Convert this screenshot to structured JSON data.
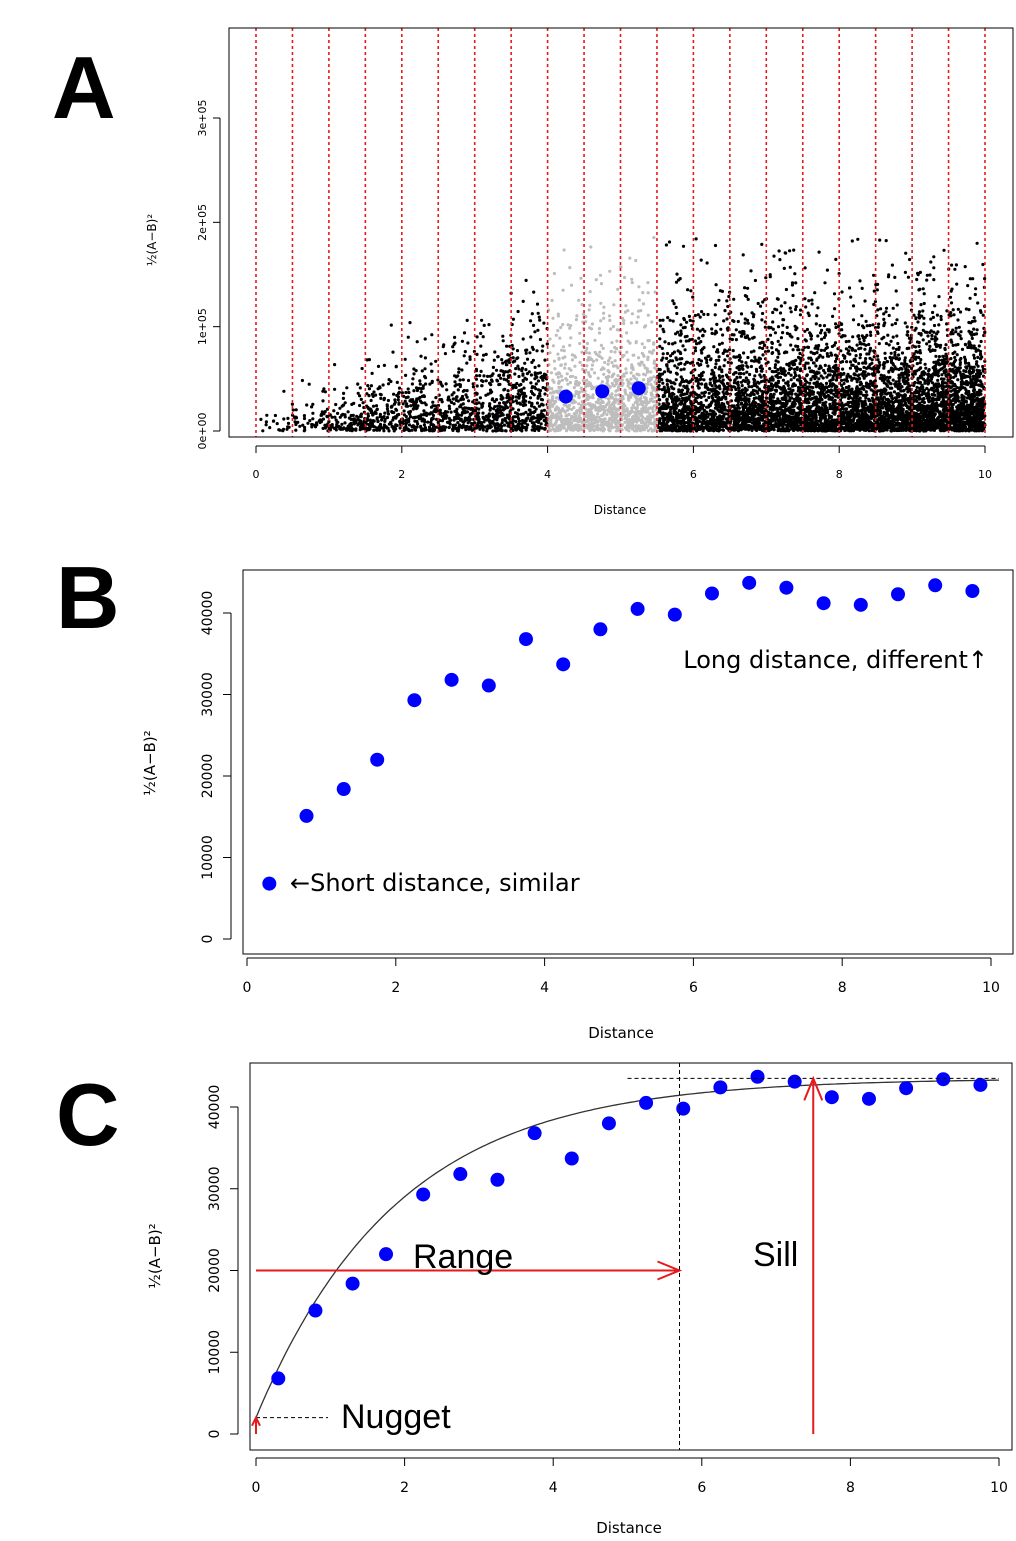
{
  "chart_data": [
    {
      "panel": "A",
      "type": "scatter",
      "xlabel": "Distance",
      "ylabel": "½(A−B)²",
      "xlim": [
        0,
        10
      ],
      "ylim": [
        0,
        380000
      ],
      "x_ticks": [
        "0",
        "2",
        "4",
        "6",
        "8",
        "10"
      ],
      "y_ticks": [
        "0e+00",
        "1e+05",
        "2e+05",
        "3e+05"
      ],
      "bin_edges": [
        0,
        0.5,
        1,
        1.5,
        2,
        2.5,
        3,
        3.5,
        4,
        4.5,
        5,
        5.5,
        6,
        6.5,
        7,
        7.5,
        8,
        8.5,
        9,
        9.5,
        10
      ],
      "bin_line_color": "#e41a1c",
      "highlight_x_range": [
        4,
        5.5
      ],
      "highlight_point_color": "#bdbdbd",
      "cloud_point_color": "#000000",
      "series": [
        {
          "x": [
            4.25,
            4.75,
            5.25
          ],
          "y": [
            33000,
            38000,
            41000
          ],
          "color": "#0000ff"
        }
      ]
    },
    {
      "panel": "B",
      "type": "scatter",
      "xlabel": "Distance",
      "ylabel": "½(A−B)²",
      "xlim": [
        0,
        10
      ],
      "ylim": [
        0,
        45000
      ],
      "x_ticks": [
        "0",
        "2",
        "4",
        "6",
        "8",
        "10"
      ],
      "y_ticks": [
        "0",
        "10000",
        "20000",
        "30000",
        "40000"
      ],
      "series": [
        {
          "x": [
            0.3,
            0.8,
            1.3,
            1.75,
            2.25,
            2.75,
            3.25,
            3.75,
            4.25,
            4.75,
            5.25,
            5.75,
            6.25,
            6.75,
            7.25,
            7.75,
            8.25,
            8.75,
            9.25,
            9.75
          ],
          "y": [
            6800,
            15100,
            18400,
            22000,
            29300,
            31800,
            31100,
            36800,
            33700,
            38000,
            40500,
            39800,
            42400,
            43700,
            43100,
            41200,
            41000,
            42300,
            43400,
            42700
          ],
          "color": "#0000ff"
        }
      ],
      "annotations": [
        "←Short distance, similar",
        "Long distance, different↑"
      ]
    },
    {
      "panel": "C",
      "type": "scatter",
      "xlabel": "Distance",
      "ylabel": "½(A−B)²",
      "xlim": [
        0,
        10
      ],
      "ylim": [
        0,
        45000
      ],
      "x_ticks": [
        "0",
        "2",
        "4",
        "6",
        "8",
        "10"
      ],
      "y_ticks": [
        "0",
        "10000",
        "20000",
        "30000",
        "40000"
      ],
      "series": [
        {
          "x": [
            0.3,
            0.8,
            1.3,
            1.75,
            2.25,
            2.75,
            3.25,
            3.75,
            4.25,
            4.75,
            5.25,
            5.75,
            6.25,
            6.75,
            7.25,
            7.75,
            8.25,
            8.75,
            9.25,
            9.75
          ],
          "y": [
            6800,
            15100,
            18400,
            22000,
            29300,
            31800,
            31100,
            36800,
            33700,
            38000,
            40500,
            39800,
            42400,
            43700,
            43100,
            41200,
            41000,
            42300,
            43400,
            42700
          ],
          "color": "#0000ff"
        }
      ],
      "model": {
        "nugget": 2000,
        "sill": 43500,
        "range": 5.7
      },
      "annotations": [
        "Range",
        "Sill",
        "Nugget"
      ]
    }
  ]
}
